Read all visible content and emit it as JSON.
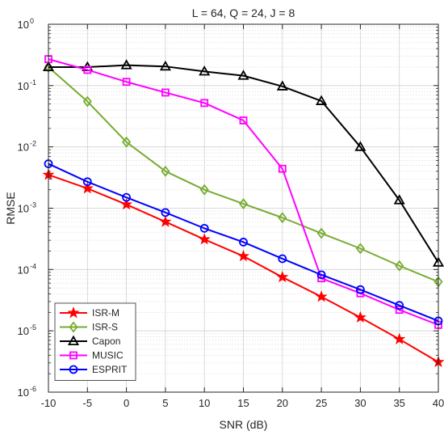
{
  "chart_data": {
    "type": "line",
    "title": "L = 64, Q = 24, J = 8",
    "xlabel": "SNR (dB)",
    "ylabel": "RMSE",
    "x": [
      -10,
      -5,
      0,
      5,
      10,
      15,
      20,
      25,
      30,
      35,
      40
    ],
    "xlim": [
      -10,
      40
    ],
    "xticks": [
      "-10",
      "-5",
      "0",
      "5",
      "10",
      "15",
      "20",
      "25",
      "30",
      "35",
      "40"
    ],
    "yscale": "log",
    "ylim": [
      1e-06,
      1
    ],
    "yticks": [
      {
        "base": "10",
        "exp": "0",
        "value": 1
      },
      {
        "base": "10",
        "exp": "-1",
        "value": 0.1
      },
      {
        "base": "10",
        "exp": "-2",
        "value": 0.01
      },
      {
        "base": "10",
        "exp": "-3",
        "value": 0.001
      },
      {
        "base": "10",
        "exp": "-4",
        "value": 0.0001
      },
      {
        "base": "10",
        "exp": "-5",
        "value": 1e-05
      },
      {
        "base": "10",
        "exp": "-6",
        "value": 1e-06
      }
    ],
    "grid": true,
    "legend_position": "bottom-left",
    "series": [
      {
        "name": "ISR-M",
        "color": "#ff0000",
        "marker": "star",
        "values": [
          0.0035,
          0.0021,
          0.00115,
          0.0006,
          0.00031,
          0.000165,
          7.5e-05,
          3.6e-05,
          1.65e-05,
          7.3e-06,
          3.1e-06
        ]
      },
      {
        "name": "ISR-S",
        "color": "#77ac30",
        "marker": "diamond",
        "values": [
          0.2,
          0.055,
          0.012,
          0.004,
          0.002,
          0.00118,
          0.0007,
          0.00039,
          0.00022,
          0.000115,
          6.3e-05
        ]
      },
      {
        "name": "Capon",
        "color": "#000000",
        "marker": "triangle",
        "values": [
          0.2,
          0.2,
          0.215,
          0.205,
          0.17,
          0.145,
          0.097,
          0.056,
          0.01,
          0.00135,
          0.00013
        ]
      },
      {
        "name": "MUSIC",
        "color": "#ff00ff",
        "marker": "square",
        "values": [
          0.27,
          0.18,
          0.115,
          0.077,
          0.052,
          0.027,
          0.0044,
          7.2e-05,
          4.1e-05,
          2.2e-05,
          1.25e-05
        ]
      },
      {
        "name": "ESPRIT",
        "color": "#0000ff",
        "marker": "circle",
        "values": [
          0.0053,
          0.0027,
          0.0015,
          0.00085,
          0.00047,
          0.00028,
          0.00015,
          8.2e-05,
          4.7e-05,
          2.6e-05,
          1.45e-05
        ]
      }
    ]
  }
}
